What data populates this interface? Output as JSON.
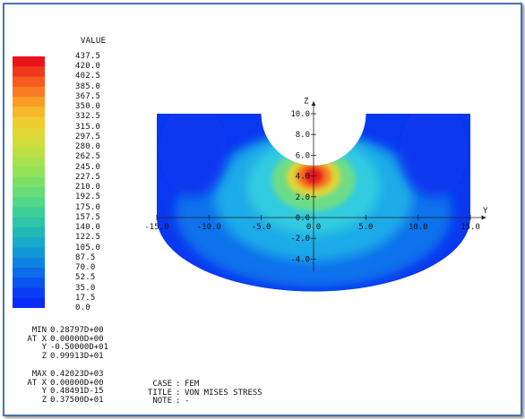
{
  "legend": {
    "title": "VALUE",
    "ticks": [
      "437.5",
      "420.0",
      "402.5",
      "385.0",
      "367.5",
      "350.0",
      "332.5",
      "315.0",
      "297.5",
      "280.0",
      "262.5",
      "245.0",
      "227.5",
      "210.0",
      "192.5",
      "175.0",
      "157.5",
      "140.0",
      "122.5",
      "105.0",
      "87.5",
      "70.0",
      "52.5",
      "35.0",
      "17.5",
      "0.0"
    ],
    "colors": [
      "#e8141c",
      "#f0381c",
      "#f55a20",
      "#f87c24",
      "#f99c28",
      "#f7b82c",
      "#f0cc30",
      "#e4d634",
      "#d2dc3c",
      "#bee044",
      "#a8e24e",
      "#92e25a",
      "#7ce068",
      "#66dc78",
      "#52d688",
      "#40ce98",
      "#30c4a8",
      "#22b8b8",
      "#18aac8",
      "#1298d6",
      "#0e84e2",
      "#0c6cec",
      "#0a54f2",
      "#0a3ef6",
      "#0a2af8"
    ]
  },
  "min": {
    "label": "MIN",
    "value": "0.28797D+00",
    "at_label": "AT X",
    "x": "0.00000D+00",
    "y_label": "Y",
    "y": "-0.50000D+01",
    "z_label": "Z",
    "z": "0.99913D+01"
  },
  "max": {
    "label": "MAX",
    "value": "0.42023D+03",
    "at_label": "AT X",
    "x": "0.00000D+00",
    "y_label": "Y",
    "y": "0.48491D-15",
    "z_label": "Z",
    "z": "0.37500D+01"
  },
  "case": {
    "case_label": "CASE",
    "case_value": "FEM",
    "title_label": "TITLE",
    "title_value": "VON MISES STRESS",
    "note_label": "NOTE",
    "note_value": "-"
  },
  "plot": {
    "y_axis_label": "Y",
    "z_axis_label": "Z",
    "y_ticks": [
      {
        "v": -15,
        "label": "-15.0"
      },
      {
        "v": -10,
        "label": "-10.0"
      },
      {
        "v": -5,
        "label": "-5.0"
      },
      {
        "v": 0,
        "label": "0.0"
      },
      {
        "v": 5,
        "label": "5.0"
      },
      {
        "v": 10,
        "label": "10.0"
      },
      {
        "v": 15,
        "label": "15.0"
      }
    ],
    "z_ticks": [
      {
        "v": 10,
        "label": "10.0"
      },
      {
        "v": 8,
        "label": "8.0"
      },
      {
        "v": 6,
        "label": "6.0"
      },
      {
        "v": 4,
        "label": "4.0"
      },
      {
        "v": 2,
        "label": "2.0"
      },
      {
        "v": 0,
        "label": "0.0"
      },
      {
        "v": -2,
        "label": "-2.0"
      },
      {
        "v": -4,
        "label": "-4.0"
      }
    ],
    "colors": {
      "deep_blue": "#0a38f0",
      "blue": "#0c72ec",
      "light_blue": "#1aaae8",
      "cyan": "#30cce0",
      "green": "#6cdc88",
      "yellow": "#e0d638",
      "orange": "#f87c24",
      "red": "#e8141c"
    }
  }
}
